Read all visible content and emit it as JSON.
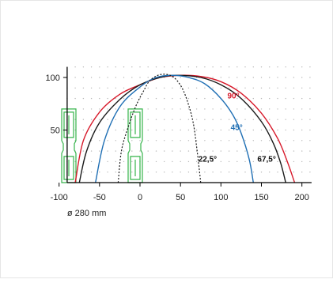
{
  "chart_data": {
    "type": "line",
    "title": "",
    "xlabel": "",
    "ylabel": "",
    "xlim": [
      -100,
      200
    ],
    "ylim": [
      0,
      110
    ],
    "x_ticks": [
      -100,
      -50,
      0,
      50,
      100,
      150,
      200
    ],
    "y_ticks": [
      50,
      100
    ],
    "grid": "dotted",
    "series": [
      {
        "name": "90°",
        "color": "#d7192a",
        "dash": "solid",
        "points": [
          [
            -80,
            0
          ],
          [
            -70,
            40
          ],
          [
            -50,
            67
          ],
          [
            -25,
            84
          ],
          [
            0,
            93
          ],
          [
            25,
            100
          ],
          [
            50,
            102
          ],
          [
            75,
            101
          ],
          [
            100,
            96
          ],
          [
            125,
            85
          ],
          [
            150,
            66
          ],
          [
            170,
            42
          ],
          [
            182,
            20
          ],
          [
            191,
            0
          ]
        ]
      },
      {
        "name": "67,5°",
        "color": "#1a1a1a",
        "dash": "solid",
        "points": [
          [
            -75,
            0
          ],
          [
            -66,
            30
          ],
          [
            -50,
            57
          ],
          [
            -25,
            79
          ],
          [
            0,
            93
          ],
          [
            25,
            100
          ],
          [
            45,
            102
          ],
          [
            75,
            100
          ],
          [
            100,
            93
          ],
          [
            125,
            80
          ],
          [
            150,
            58
          ],
          [
            165,
            37
          ],
          [
            174,
            18
          ],
          [
            180,
            0
          ]
        ]
      },
      {
        "name": "45°",
        "color": "#1f6fb4",
        "dash": "solid",
        "points": [
          [
            -55,
            0
          ],
          [
            -44,
            40
          ],
          [
            -25,
            72
          ],
          [
            0,
            91
          ],
          [
            20,
            100
          ],
          [
            40,
            102
          ],
          [
            60,
            100
          ],
          [
            80,
            94
          ],
          [
            100,
            80
          ],
          [
            115,
            64
          ],
          [
            125,
            47
          ],
          [
            135,
            22
          ],
          [
            140,
            0
          ]
        ]
      },
      {
        "name": "22,5°",
        "color": "#1a1a1a",
        "dash": "dotted",
        "points": [
          [
            -27,
            0
          ],
          [
            -23,
            30
          ],
          [
            -15,
            52
          ],
          [
            -5,
            73
          ],
          [
            5,
            88
          ],
          [
            12,
            97
          ],
          [
            22,
            102
          ],
          [
            32,
            103
          ],
          [
            42,
            100
          ],
          [
            52,
            90
          ],
          [
            60,
            74
          ],
          [
            66,
            56
          ],
          [
            70,
            34
          ],
          [
            73,
            14
          ],
          [
            75,
            0
          ]
        ]
      }
    ],
    "annotations": {
      "series_labels": [
        {
          "text": "90°",
          "x": 108,
          "y": 80
        },
        {
          "text": "45°",
          "x": 112,
          "y": 50
        },
        {
          "text": "22,5°",
          "x": 72,
          "y": 20
        },
        {
          "text": "67,5°",
          "x": 145,
          "y": 20
        }
      ],
      "diameter_label": "ø 280 mm"
    }
  }
}
